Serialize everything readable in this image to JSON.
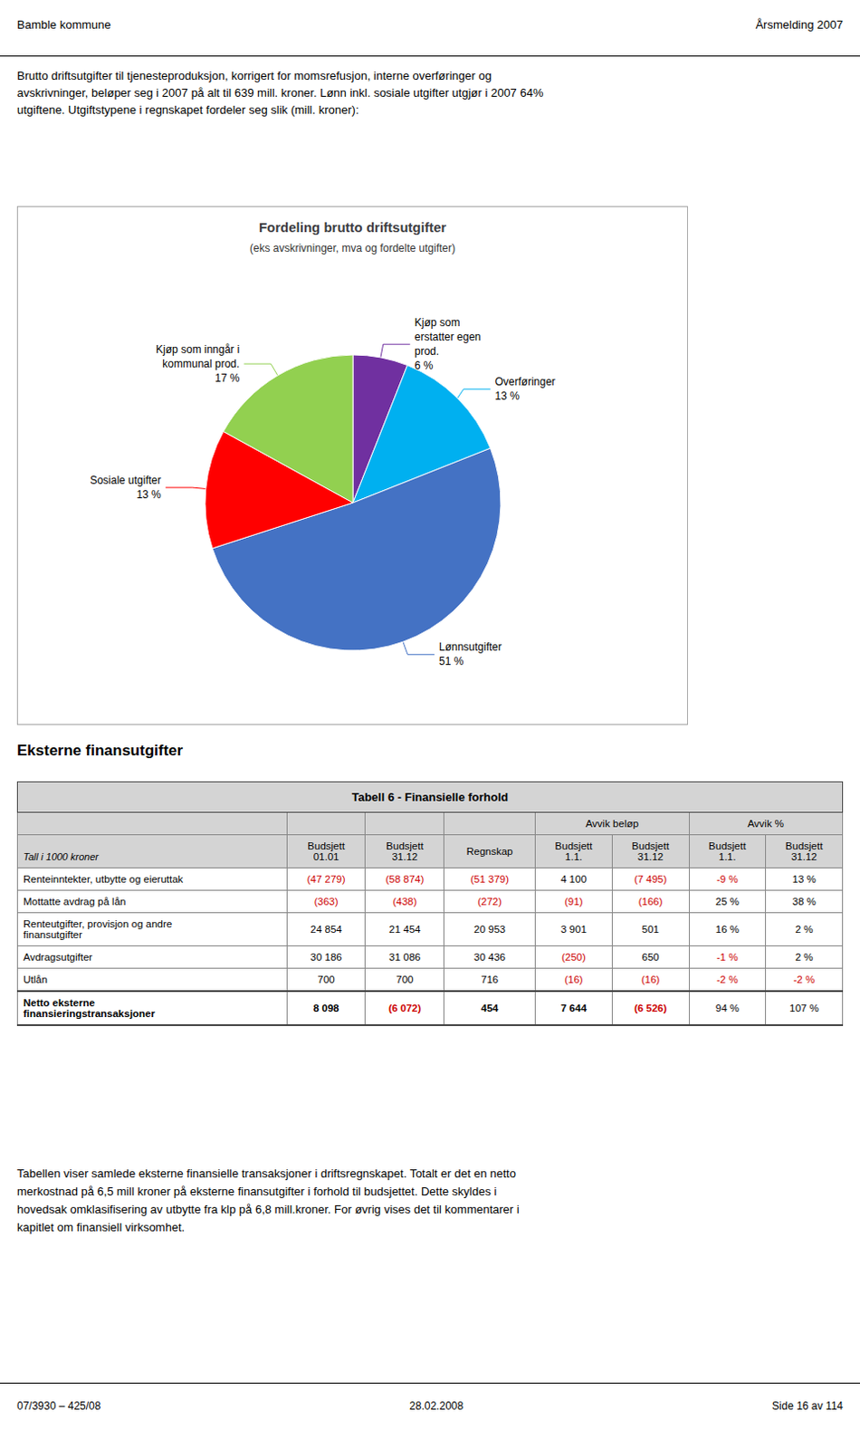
{
  "page": {
    "title_left": "Bamble kommune",
    "title_right": "Årsmelding 2007",
    "intro": "Brutto driftsutgifter til tjenesteproduksjon, korrigert for momsrefusjon, interne overføringer og\navskrivninger, beløper seg i 2007 på alt til 639 mill. kroner. Lønn inkl. sosiale utgifter utgjør i 2007 64%\nutgiftene. Utgiftstypene i regnskapet fordeler seg slik (mill. kroner):",
    "section_title": "Eksterne finansutgifter",
    "footer_text": "Tabellen viser samlede eksterne finansielle transaksjoner i driftsregnskapet. Totalt er det en netto\nmerkostnad på 6,5 mill kroner på eksterne finansutgifter i forhold til budsjettet. Dette skyldes i\nhovedsak omklasifisering av utbytte fra klp på 6,8 mill.kroner. For øvrig vises det til kommentarer i\nkapitlet om finansiell virksomhet.",
    "footer_left": "07/3930 – 425/08",
    "footer_center": "28.02.2008",
    "footer_right": "Side 16 av 114"
  },
  "chart_data": {
    "type": "pie",
    "title": "Fordeling brutto driftsutgifter",
    "subtitle": "(eks avskrivninger, mva og fordelte utgifter)",
    "categories": [
      "Kjøp som\nerstatter egen\nprod.",
      "Overføringer",
      "Lønnsutgifter",
      "Sosiale utgifter",
      "Kjøp som inngår i\nkommunal prod."
    ],
    "values": [
      6,
      13,
      51,
      13,
      17
    ],
    "value_labels": [
      "6 %",
      "13 %",
      "51 %",
      "13 %",
      "17 %"
    ],
    "colors": [
      "#7030A0",
      "#00B0F0",
      "#4472C4",
      "#FF0000",
      "#92D050"
    ],
    "data_labels": true
  },
  "table": {
    "title": "Tabell 6 - Finansielle forhold",
    "unit_note": "Tall i 1000 kroner",
    "header_groups": [
      null,
      null,
      null,
      "Avvik beløp",
      "Avvik beløp",
      "Avvik %",
      "Avvik %"
    ],
    "columns": [
      "Budsjett\n01.01",
      "Budsjett\n31.12",
      "Regnskap",
      "Budsjett\n1.1.",
      "Budsjett\n31.12",
      "Budsjett\n1.1.",
      "Budsjett\n31.12"
    ],
    "rows": [
      {
        "label": "Renteinntekter, utbytte og eieruttak",
        "values": [
          "(47 279)",
          "(58 874)",
          "(51 379)",
          "4 100",
          "(7 495)",
          "-9 %",
          "13 %"
        ],
        "red": [
          true,
          true,
          true,
          false,
          true,
          true,
          false
        ]
      },
      {
        "label": "Mottatte avdrag på lån",
        "values": [
          "(363)",
          "(438)",
          "(272)",
          "(91)",
          "(166)",
          "25 %",
          "38 %"
        ],
        "red": [
          true,
          true,
          true,
          true,
          true,
          false,
          false
        ]
      },
      {
        "label": "Renteutgifter, provisjon og andre\nfinansutgifter",
        "values": [
          "24 854",
          "21 454",
          "20 953",
          "3 901",
          "501",
          "16 %",
          "2 %"
        ],
        "red": [
          false,
          false,
          false,
          false,
          false,
          false,
          false
        ]
      },
      {
        "label": "Avdragsutgifter",
        "values": [
          "30 186",
          "31 086",
          "30 436",
          "(250)",
          "650",
          "-1 %",
          "2 %"
        ],
        "red": [
          false,
          false,
          false,
          true,
          false,
          true,
          false
        ]
      },
      {
        "label": "Utlån",
        "values": [
          "700",
          "700",
          "716",
          "(16)",
          "(16)",
          "-2 %",
          "-2 %"
        ],
        "red": [
          false,
          false,
          false,
          true,
          true,
          true,
          true
        ]
      }
    ],
    "total": {
      "label": "Netto eksterne\nfinansieringstransaksjoner",
      "values": [
        "8 098",
        "(6 072)",
        "454",
        "7 644",
        "(6 526)",
        "94 %",
        "107 %"
      ],
      "red": [
        false,
        true,
        false,
        false,
        true,
        false,
        false
      ],
      "bold": [
        true,
        true,
        true,
        true,
        true,
        false,
        false
      ]
    }
  }
}
